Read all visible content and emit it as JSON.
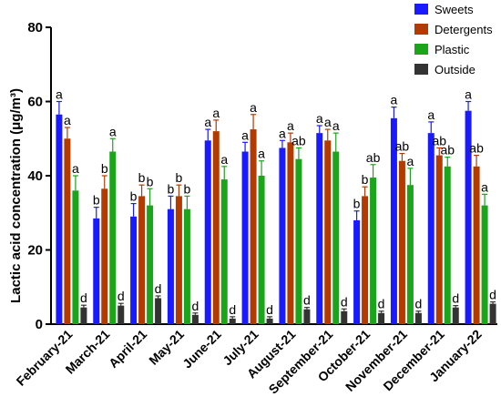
{
  "chart_data": {
    "type": "bar",
    "ylabel": "Lactic acid concentration (μg/m³)",
    "xlabel": "",
    "ylim": [
      0,
      80
    ],
    "yticks": [
      0,
      20,
      40,
      60,
      80
    ],
    "categories": [
      "February-21",
      "March-21",
      "April-21",
      "May-21",
      "June-21",
      "July-21",
      "August-21",
      "September-21",
      "October-21",
      "November-21",
      "December-21",
      "January-22"
    ],
    "legend_position": "top-right",
    "series": [
      {
        "name": "Sweets",
        "color": "#1a1aff",
        "values": [
          56.5,
          28.5,
          29,
          31,
          49.5,
          46.5,
          47.5,
          51.5,
          28,
          55.5,
          51.5,
          57.5
        ],
        "errors": [
          3.5,
          3.0,
          3.5,
          3.5,
          3.0,
          2.5,
          2.0,
          2.0,
          2.5,
          3.0,
          3.0,
          2.5
        ],
        "labels": [
          "a",
          "b",
          "b",
          "b",
          "a",
          "a",
          "a",
          "a",
          "b",
          "a",
          "a",
          "a"
        ]
      },
      {
        "name": "Detergents",
        "color": "#b33a00",
        "values": [
          50,
          36.5,
          34.5,
          34.5,
          52,
          52.5,
          49,
          49.5,
          34.5,
          44,
          45.5,
          42.5
        ],
        "errors": [
          3.0,
          3.5,
          3.0,
          3.0,
          3.0,
          4.0,
          2.5,
          3.0,
          2.5,
          2.0,
          2.0,
          3.0
        ],
        "labels": [
          "a",
          "b",
          "b",
          "b",
          "a",
          "a",
          "a",
          "a",
          "b",
          "ab",
          "ab",
          "ab"
        ]
      },
      {
        "name": "Plastic",
        "color": "#1aa51a",
        "values": [
          36,
          46.5,
          32,
          31,
          39,
          40,
          44.5,
          46.5,
          39.5,
          37.5,
          42.5,
          32
        ],
        "errors": [
          4.0,
          3.5,
          4.5,
          3.5,
          3.5,
          4.0,
          3.0,
          5.0,
          3.5,
          4.5,
          2.5,
          3.0
        ],
        "labels": [
          "a",
          "a",
          "b",
          "b",
          "a",
          "a",
          "ab",
          "a",
          "ab",
          "a",
          "ab",
          "a"
        ]
      },
      {
        "name": "Outside",
        "color": "#333333",
        "values": [
          4.5,
          5,
          7,
          2.5,
          1.5,
          1.5,
          4,
          3.5,
          3,
          3,
          4.5,
          5.5
        ],
        "errors": [
          0.6,
          0.6,
          0.6,
          0.5,
          0.5,
          0.5,
          0.5,
          0.6,
          0.5,
          0.5,
          0.5,
          0.5
        ],
        "labels": [
          "d",
          "d",
          "d",
          "d",
          "d",
          "d",
          "d",
          "d",
          "d",
          "d",
          "d",
          "d"
        ]
      }
    ]
  }
}
